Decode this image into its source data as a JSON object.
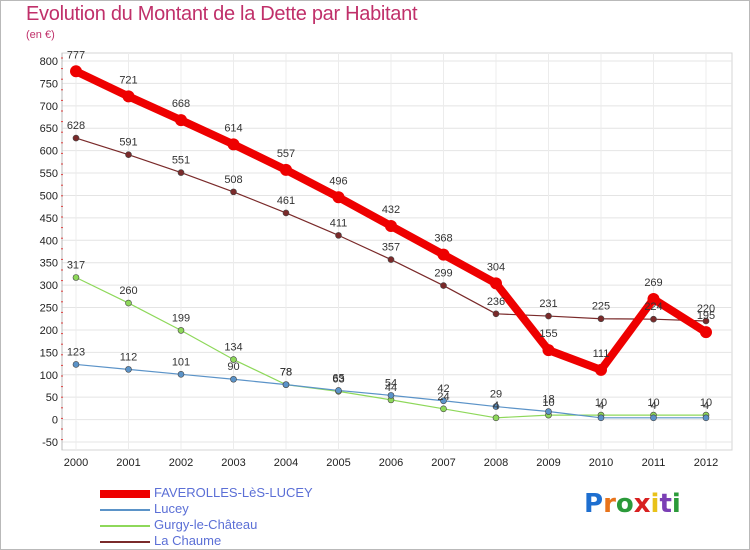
{
  "title": "Evolution du Montant de la Dette par Habitant",
  "subtitle": "(en €)",
  "logo": {
    "text": "Proxiti",
    "letters": [
      "P",
      "r",
      "o",
      "x",
      "i",
      "t",
      "i"
    ],
    "colors": [
      "#1e6fd0",
      "#e8731a",
      "#2b9a3a",
      "#d82020",
      "#e8c21a",
      "#7b3fb5",
      "#2b9a3a"
    ]
  },
  "chart_data": {
    "type": "line",
    "title": "Evolution du Montant de la Dette par Habitant",
    "ylabel": "(en €)",
    "xlabel": "",
    "x": [
      2000,
      2001,
      2002,
      2003,
      2004,
      2005,
      2006,
      2007,
      2008,
      2009,
      2010,
      2011,
      2012
    ],
    "ylim": [
      -50,
      800
    ],
    "yticks": [
      -50,
      0,
      50,
      100,
      150,
      200,
      250,
      300,
      350,
      400,
      450,
      500,
      550,
      600,
      650,
      700,
      750,
      800
    ],
    "legend_position": "bottom-left",
    "series": [
      {
        "name": "FAVEROLLES-LèS-LUCEY",
        "color": "#ee0000",
        "values": [
          777,
          721,
          668,
          614,
          557,
          496,
          432,
          368,
          304,
          155,
          111,
          269,
          195
        ]
      },
      {
        "name": "Lucey",
        "color": "#5b93c8",
        "values": [
          123,
          112,
          101,
          90,
          78,
          65,
          54,
          42,
          29,
          18,
          4,
          4,
          4
        ]
      },
      {
        "name": "Gurgy-le-Château",
        "color": "#8ed85a",
        "values": [
          317,
          260,
          199,
          134,
          78,
          63,
          44,
          24,
          4,
          10,
          10,
          10,
          10
        ]
      },
      {
        "name": "La Chaume",
        "color": "#7a2a2a",
        "values": [
          628,
          591,
          551,
          508,
          461,
          411,
          357,
          299,
          236,
          231,
          225,
          224,
          220
        ]
      }
    ]
  }
}
